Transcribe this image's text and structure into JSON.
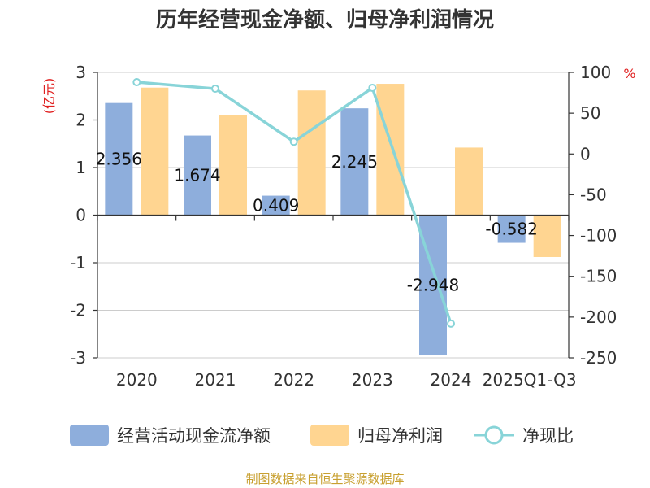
{
  "chart_data": {
    "type": "bar",
    "title": "历年经营现金净额、归母净利润情况",
    "categories": [
      "2020",
      "2021",
      "2022",
      "2023",
      "2024",
      "2025Q1-Q3"
    ],
    "series": [
      {
        "name": "经营活动现金流净额",
        "axis": "left",
        "type": "bar",
        "color": "#8eaedc",
        "values": [
          2.356,
          1.674,
          0.409,
          2.245,
          -2.948,
          -0.582
        ]
      },
      {
        "name": "归母净利润",
        "axis": "left",
        "type": "bar",
        "color": "#ffd591",
        "values": [
          2.68,
          2.1,
          2.62,
          2.76,
          1.42,
          -0.88
        ]
      },
      {
        "name": "净现比",
        "axis": "right",
        "type": "line",
        "color": "#88d4d8",
        "values": [
          88,
          80,
          15,
          81,
          -208,
          null
        ]
      }
    ],
    "data_labels": [
      "2.356",
      "1.674",
      "0.409",
      "2.245",
      "-2.948",
      "-0.582"
    ],
    "y_left": {
      "label": "(亿元)",
      "min": -3,
      "max": 3,
      "ticks": [
        "3",
        "2",
        "1",
        "0",
        "-1",
        "-2",
        "-3"
      ]
    },
    "y_right": {
      "label": "%",
      "min": -250,
      "max": 100,
      "ticks": [
        "100",
        "50",
        "0",
        "-50",
        "-100",
        "-150",
        "-200",
        "-250"
      ]
    },
    "grid": true,
    "legend_position": "bottom"
  },
  "source": "制图数据来自恒生聚源数据库"
}
